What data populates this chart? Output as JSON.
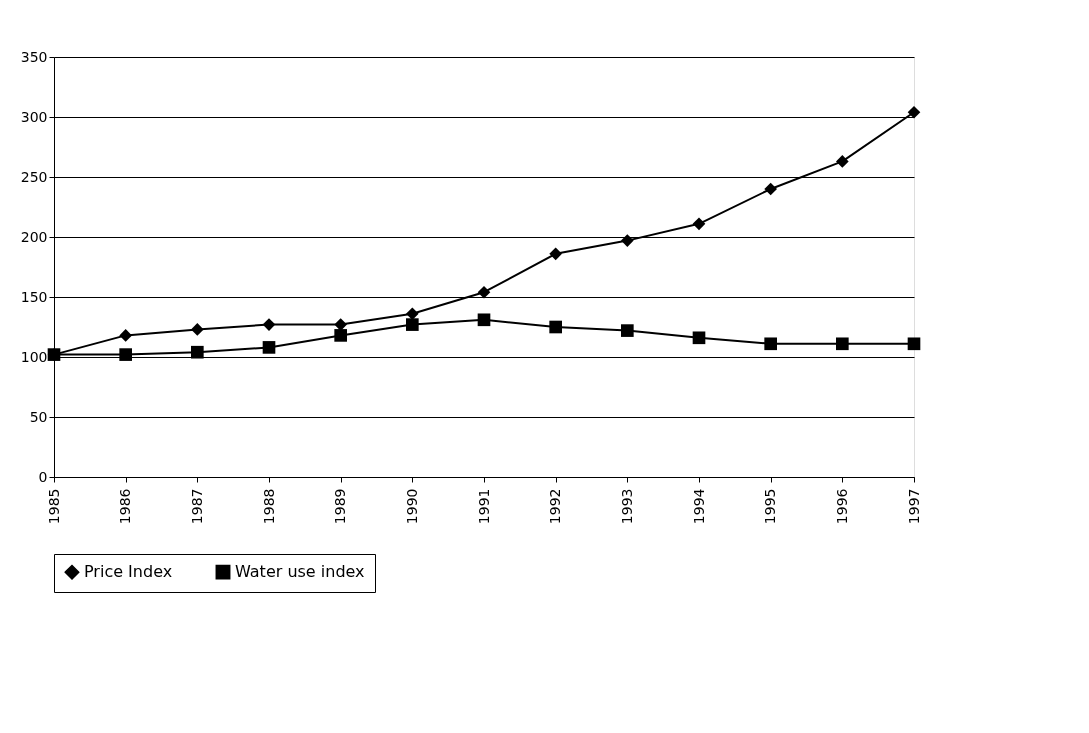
{
  "chart_data": {
    "type": "line",
    "categories": [
      "1985",
      "1986",
      "1987",
      "1988",
      "1989",
      "1990",
      "1991",
      "1992",
      "1993",
      "1994",
      "1995",
      "1996",
      "1997"
    ],
    "series": [
      {
        "name": "Price Index",
        "color": "#000000",
        "marker": "diamond",
        "values": [
          102,
          118,
          123,
          127,
          127,
          136,
          154,
          186,
          197,
          211,
          240,
          263,
          304
        ]
      },
      {
        "name": "Water use index",
        "color": "#000000",
        "marker": "square",
        "values": [
          102,
          102,
          104,
          108,
          118,
          127,
          131,
          125,
          122,
          116,
          111,
          111,
          111
        ]
      }
    ],
    "ylim": [
      0,
      350
    ],
    "yticks": [
      0,
      50,
      100,
      150,
      200,
      250,
      300,
      350
    ],
    "grid": "y",
    "legend": "bottom",
    "line_style": "solid"
  }
}
